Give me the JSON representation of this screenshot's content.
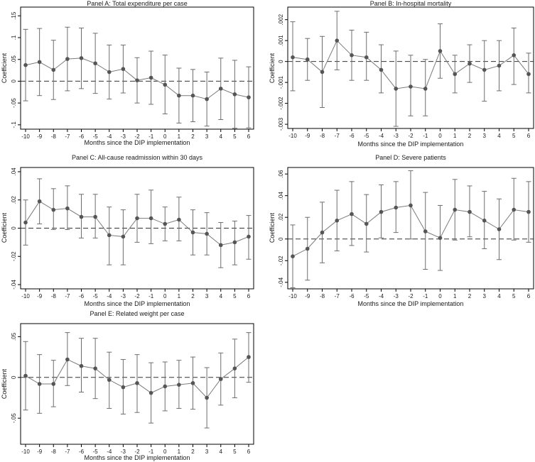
{
  "chart_data": [
    {
      "id": "A",
      "type": "line",
      "title": "Panel A: Total expenditure per case",
      "xlabel": "Months since the DIP implementation",
      "ylabel": "Coefficient",
      "x": [
        -10,
        -9,
        -8,
        -7,
        -6,
        -5,
        -4,
        -3,
        -2,
        -1,
        0,
        1,
        2,
        3,
        4,
        5,
        6
      ],
      "x_tick_labels": [
        "-10",
        "-9",
        "-8",
        "-7",
        "-6",
        "-5",
        "-4",
        "-3",
        "-2",
        "-1",
        "0",
        "1",
        "2",
        "3",
        "4",
        "5",
        "6"
      ],
      "ylim": [
        -0.11,
        0.17
      ],
      "y_ticks": [
        -0.1,
        -0.05,
        0,
        0.05,
        0.1,
        0.15
      ],
      "y_tick_labels": [
        "-.1",
        "-.05",
        "0",
        ".05",
        ".1",
        ".15"
      ],
      "coef": [
        0.037,
        0.044,
        0.026,
        0.051,
        0.053,
        0.041,
        0.021,
        0.028,
        0.002,
        0.008,
        -0.008,
        -0.033,
        -0.033,
        -0.041,
        -0.017,
        -0.03,
        -0.037
      ],
      "ci_low": [
        -0.045,
        -0.033,
        -0.042,
        -0.022,
        -0.017,
        -0.028,
        -0.041,
        -0.027,
        -0.05,
        -0.053,
        -0.075,
        -0.096,
        -0.093,
        -0.103,
        -0.088,
        -0.108,
        -0.107
      ],
      "ci_high": [
        0.119,
        0.121,
        0.094,
        0.124,
        0.122,
        0.11,
        0.083,
        0.083,
        0.054,
        0.069,
        0.06,
        0.03,
        0.027,
        0.021,
        0.053,
        0.048,
        0.033
      ],
      "reference_line": 0
    },
    {
      "id": "B",
      "type": "line",
      "title": "Panel B: In-hospital mortality",
      "xlabel": "Months since the DIP implementation",
      "ylabel": "Coefficient",
      "x": [
        -10,
        -9,
        -8,
        -7,
        -6,
        -5,
        -4,
        -3,
        -2,
        -1,
        0,
        1,
        2,
        3,
        4,
        5,
        6
      ],
      "x_tick_labels": [
        "-10",
        "-9",
        "-8",
        "-7",
        "-6",
        "-5",
        "-4",
        "-3",
        "-2",
        "-1",
        "0",
        "1",
        "2",
        "3",
        "4",
        "5",
        "6"
      ],
      "ylim": [
        -0.0032,
        0.0026
      ],
      "y_ticks": [
        -0.003,
        -0.002,
        -0.001,
        0,
        0.001,
        0.002
      ],
      "y_tick_labels": [
        "-.003",
        "-.002",
        "-.001",
        "0",
        ".001",
        ".002"
      ],
      "coef": [
        0.0002,
        0.0001,
        -0.0005,
        0.001,
        0.0003,
        0.0002,
        -0.0004,
        -0.0013,
        -0.0012,
        -0.0013,
        0.0005,
        -0.0006,
        -0.0001,
        -0.0004,
        -0.0002,
        0.0003,
        -0.0006
      ],
      "ci_low": [
        -0.0014,
        -0.0009,
        -0.0022,
        -0.0004,
        -0.0009,
        -0.0009,
        -0.0015,
        -0.0031,
        -0.0026,
        -0.0026,
        -0.0008,
        -0.0015,
        -0.001,
        -0.0019,
        -0.0014,
        -0.0011,
        -0.0015
      ],
      "ci_high": [
        0.0019,
        0.0011,
        0.0012,
        0.0024,
        0.0015,
        0.0014,
        0.0008,
        0.0005,
        0.0003,
        0.0001,
        0.0018,
        0.0003,
        0.0008,
        0.001,
        0.001,
        0.0016,
        0.0004
      ],
      "reference_line": 0
    },
    {
      "id": "C",
      "type": "line",
      "title": "Panel C: All-cause readmission within 30 days",
      "xlabel": "Months since the DIP implementation",
      "ylabel": "Coefficient",
      "x": [
        -10,
        -9,
        -8,
        -7,
        -6,
        -5,
        -4,
        -3,
        -2,
        -1,
        0,
        1,
        2,
        3,
        4,
        5,
        6
      ],
      "x_tick_labels": [
        "-10",
        "-9",
        "-8",
        "-7",
        "-6",
        "-5",
        "-4",
        "-3",
        "-2",
        "-1",
        "0",
        "1",
        "2",
        "3",
        "4",
        "5",
        "6"
      ],
      "ylim": [
        -0.043,
        0.043
      ],
      "y_ticks": [
        -0.04,
        -0.02,
        0,
        0.02,
        0.04
      ],
      "y_tick_labels": [
        "-.04",
        "-.02",
        "0",
        ".02",
        ".04"
      ],
      "coef": [
        0.004,
        0.019,
        0.013,
        0.014,
        0.008,
        0.008,
        -0.005,
        -0.006,
        0.007,
        0.007,
        0.003,
        0.006,
        -0.003,
        -0.004,
        -0.012,
        -0.01,
        -0.006
      ],
      "ci_low": [
        -0.012,
        0.003,
        -0.001,
        -0.001,
        -0.007,
        -0.007,
        -0.026,
        -0.026,
        -0.01,
        -0.011,
        -0.009,
        -0.009,
        -0.019,
        -0.019,
        -0.028,
        -0.026,
        -0.022
      ],
      "ci_high": [
        0.02,
        0.035,
        0.028,
        0.03,
        0.024,
        0.024,
        0.015,
        0.013,
        0.024,
        0.027,
        0.015,
        0.022,
        0.013,
        0.011,
        0.004,
        0.005,
        0.009
      ],
      "reference_line": 0
    },
    {
      "id": "D",
      "type": "line",
      "title": "Panel D: Severe patients",
      "xlabel": "Months since the DIP implementation",
      "ylabel": "Coefficient",
      "x": [
        -10,
        -9,
        -8,
        -7,
        -6,
        -5,
        -4,
        -3,
        -2,
        -1,
        0,
        1,
        2,
        3,
        4,
        5,
        6
      ],
      "x_tick_labels": [
        "-10",
        "-9",
        "-8",
        "-7",
        "-6",
        "-5",
        "-4",
        "-3",
        "-2",
        "-1",
        "0",
        "1",
        "2",
        "3",
        "4",
        "5",
        "6"
      ],
      "ylim": [
        -0.046,
        0.066
      ],
      "y_ticks": [
        -0.04,
        -0.02,
        0,
        0.02,
        0.04,
        0.06
      ],
      "y_tick_labels": [
        "-.04",
        "-.02",
        "0",
        ".02",
        ".04",
        ".06"
      ],
      "coef": [
        -0.016,
        -0.009,
        0.006,
        0.017,
        0.023,
        0.014,
        0.025,
        0.029,
        0.031,
        0.007,
        0.001,
        0.027,
        0.025,
        0.017,
        0.009,
        0.027,
        0.025
      ],
      "ci_low": [
        -0.045,
        -0.038,
        -0.022,
        -0.011,
        -0.006,
        -0.012,
        0.001,
        0.006,
        0.0,
        -0.028,
        -0.029,
        -0.001,
        0.002,
        -0.009,
        -0.019,
        -0.001,
        -0.003
      ],
      "ci_high": [
        0.013,
        0.02,
        0.034,
        0.045,
        0.053,
        0.041,
        0.05,
        0.053,
        0.063,
        0.043,
        0.031,
        0.055,
        0.049,
        0.044,
        0.037,
        0.056,
        0.053
      ],
      "reference_line": 0
    },
    {
      "id": "E",
      "type": "line",
      "title": "Panel E: Related weight per case",
      "xlabel": "Months since the DIP implementation",
      "ylabel": "Coefficient",
      "x": [
        -10,
        -9,
        -8,
        -7,
        -6,
        -5,
        -4,
        -3,
        -2,
        -1,
        0,
        1,
        2,
        3,
        4,
        5,
        6
      ],
      "x_tick_labels": [
        "-10",
        "-9",
        "-8",
        "-7",
        "-6",
        "-5",
        "-4",
        "-3",
        "-2",
        "-1",
        "0",
        "1",
        "2",
        "3",
        "4",
        "5",
        "6"
      ],
      "ylim": [
        -0.082,
        0.066
      ],
      "y_ticks": [
        -0.05,
        0,
        0.05
      ],
      "y_tick_labels": [
        "-.05",
        "0",
        ".05"
      ],
      "coef": [
        0.002,
        -0.008,
        -0.008,
        0.022,
        0.014,
        0.011,
        -0.003,
        -0.012,
        -0.007,
        -0.019,
        -0.011,
        -0.009,
        -0.007,
        -0.025,
        -0.002,
        0.011,
        0.025
      ],
      "ci_low": [
        -0.04,
        -0.044,
        -0.036,
        -0.01,
        -0.018,
        -0.026,
        -0.038,
        -0.045,
        -0.043,
        -0.056,
        -0.041,
        -0.038,
        -0.039,
        -0.062,
        -0.034,
        -0.025,
        -0.006
      ],
      "ci_high": [
        0.044,
        0.028,
        0.021,
        0.055,
        0.048,
        0.048,
        0.031,
        0.022,
        0.028,
        0.018,
        0.019,
        0.021,
        0.025,
        0.012,
        0.03,
        0.047,
        0.055
      ],
      "reference_line": 0
    }
  ]
}
